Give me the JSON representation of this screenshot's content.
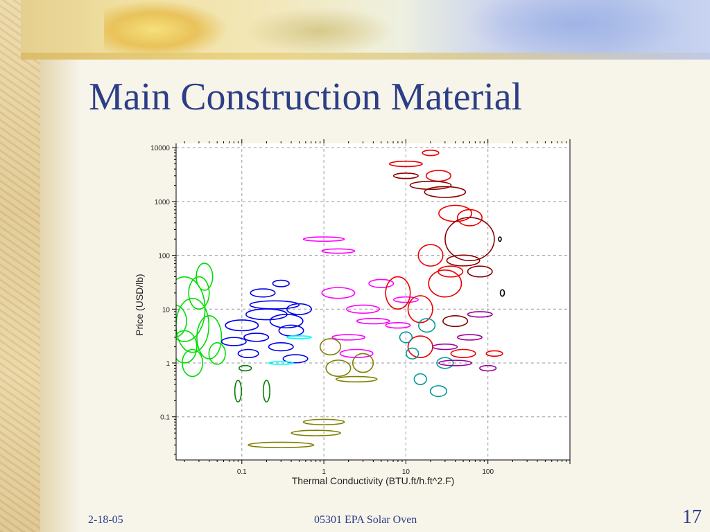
{
  "slide": {
    "title": "Main Construction Material",
    "footer_date": "2-18-05",
    "footer_center": "05301 EPA Solar Oven",
    "page_number": "17"
  },
  "chart_data": {
    "type": "scatter",
    "title": "",
    "xlabel": "Thermal Conductivity (BTU.ft/h.ft^2.F)",
    "ylabel": "Price (USD/lb)",
    "xscale": "log",
    "yscale": "log",
    "xlim": [
      0.0158,
      1000
    ],
    "ylim": [
      0.0158,
      12000
    ],
    "grid": true,
    "x_ticks": [
      0.1,
      1,
      10,
      100
    ],
    "x_tick_labels": [
      "0.1",
      "1",
      "10",
      "100"
    ],
    "y_ticks": [
      0.1,
      1,
      10,
      100,
      1000,
      10000
    ],
    "y_tick_labels": [
      "0.1",
      "1",
      "10",
      "100",
      "1000",
      "10000"
    ],
    "series": [
      {
        "color": "#00dd00",
        "points": [
          [
            0.02,
            10,
            0.5,
            1.2
          ],
          [
            0.025,
            5,
            0.4,
            1.0
          ],
          [
            0.03,
            20,
            0.25,
            0.6
          ],
          [
            0.02,
            2,
            0.3,
            0.6
          ],
          [
            0.04,
            3,
            0.3,
            0.8
          ],
          [
            0.035,
            40,
            0.2,
            0.5
          ],
          [
            0.015,
            6,
            0.3,
            0.6
          ],
          [
            0.05,
            1.5,
            0.2,
            0.4
          ],
          [
            0.025,
            1,
            0.25,
            0.5
          ]
        ]
      },
      {
        "color": "#0000ee",
        "points": [
          [
            0.1,
            5,
            0.4,
            0.2
          ],
          [
            0.15,
            3,
            0.3,
            0.15
          ],
          [
            0.2,
            8,
            0.5,
            0.2
          ],
          [
            0.3,
            2,
            0.3,
            0.15
          ],
          [
            0.25,
            12,
            0.6,
            0.15
          ],
          [
            0.4,
            4,
            0.3,
            0.2
          ],
          [
            0.12,
            1.5,
            0.25,
            0.15
          ],
          [
            0.35,
            6,
            0.4,
            0.25
          ],
          [
            0.5,
            10,
            0.3,
            0.2
          ],
          [
            0.18,
            20,
            0.3,
            0.15
          ],
          [
            0.08,
            2.5,
            0.3,
            0.15
          ],
          [
            0.45,
            1.2,
            0.3,
            0.15
          ],
          [
            0.3,
            30,
            0.2,
            0.12
          ]
        ]
      },
      {
        "color": "#808000",
        "points": [
          [
            0.3,
            0.03,
            0.8,
            0.1
          ],
          [
            0.8,
            0.05,
            0.6,
            0.1
          ],
          [
            1.0,
            0.08,
            0.5,
            0.1
          ],
          [
            2.5,
            0.5,
            0.5,
            0.1
          ],
          [
            1.5,
            0.8,
            0.3,
            0.3
          ],
          [
            3.0,
            1.0,
            0.25,
            0.35
          ],
          [
            1.2,
            2.0,
            0.25,
            0.3
          ]
        ]
      },
      {
        "color": "#008000",
        "points": [
          [
            0.09,
            0.3,
            0.08,
            0.4
          ],
          [
            0.2,
            0.3,
            0.08,
            0.4
          ],
          [
            0.11,
            0.8,
            0.15,
            0.1
          ]
        ]
      },
      {
        "color": "#ff00ff",
        "points": [
          [
            2,
            3,
            0.4,
            0.1
          ],
          [
            3,
            10,
            0.4,
            0.15
          ],
          [
            5,
            30,
            0.3,
            0.15
          ],
          [
            1.5,
            20,
            0.4,
            0.2
          ],
          [
            4,
            6,
            0.4,
            0.1
          ],
          [
            2.5,
            1.5,
            0.4,
            0.15
          ],
          [
            8,
            5,
            0.3,
            0.1
          ],
          [
            10,
            15,
            0.3,
            0.1
          ],
          [
            1.0,
            200,
            0.5,
            0.08
          ],
          [
            1.5,
            120,
            0.4,
            0.08
          ]
        ]
      },
      {
        "color": "#ee0000",
        "points": [
          [
            8,
            20,
            0.3,
            0.6
          ],
          [
            15,
            10,
            0.3,
            0.5
          ],
          [
            20,
            100,
            0.3,
            0.4
          ],
          [
            30,
            30,
            0.4,
            0.5
          ],
          [
            10,
            5000,
            0.4,
            0.1
          ],
          [
            25,
            3000,
            0.3,
            0.2
          ],
          [
            40,
            600,
            0.4,
            0.3
          ],
          [
            20,
            8000,
            0.2,
            0.1
          ],
          [
            60,
            500,
            0.3,
            0.3
          ],
          [
            50,
            1.5,
            0.3,
            0.15
          ],
          [
            120,
            1.5,
            0.2,
            0.1
          ],
          [
            15,
            2,
            0.3,
            0.4
          ],
          [
            35,
            50,
            0.3,
            0.2
          ]
        ]
      },
      {
        "color": "#8b0000",
        "points": [
          [
            60,
            200,
            0.6,
            0.8
          ],
          [
            30,
            1500,
            0.5,
            0.2
          ],
          [
            20,
            2000,
            0.5,
            0.15
          ],
          [
            10,
            3000,
            0.3,
            0.1
          ],
          [
            50,
            80,
            0.4,
            0.2
          ],
          [
            80,
            50,
            0.3,
            0.2
          ],
          [
            40,
            6,
            0.3,
            0.2
          ]
        ]
      },
      {
        "color": "#009999",
        "points": [
          [
            15,
            0.5,
            0.15,
            0.2
          ],
          [
            25,
            0.3,
            0.2,
            0.2
          ],
          [
            10,
            3,
            0.15,
            0.2
          ],
          [
            18,
            5,
            0.2,
            0.25
          ],
          [
            12,
            1.5,
            0.15,
            0.2
          ],
          [
            30,
            1,
            0.2,
            0.2
          ]
        ]
      },
      {
        "color": "#00ffff",
        "points": [
          [
            0.5,
            3,
            0.3,
            0.05
          ],
          [
            0.3,
            1,
            0.3,
            0.05
          ]
        ]
      },
      {
        "color": "#990099",
        "points": [
          [
            40,
            1,
            0.4,
            0.1
          ],
          [
            60,
            3,
            0.3,
            0.1
          ],
          [
            80,
            8,
            0.3,
            0.1
          ],
          [
            30,
            2,
            0.3,
            0.1
          ],
          [
            100,
            0.8,
            0.2,
            0.1
          ]
        ]
      },
      {
        "color": "#000000",
        "points": [
          [
            150,
            20,
            0.05,
            0.12
          ],
          [
            140,
            200,
            0.02,
            0.08
          ]
        ]
      }
    ]
  }
}
